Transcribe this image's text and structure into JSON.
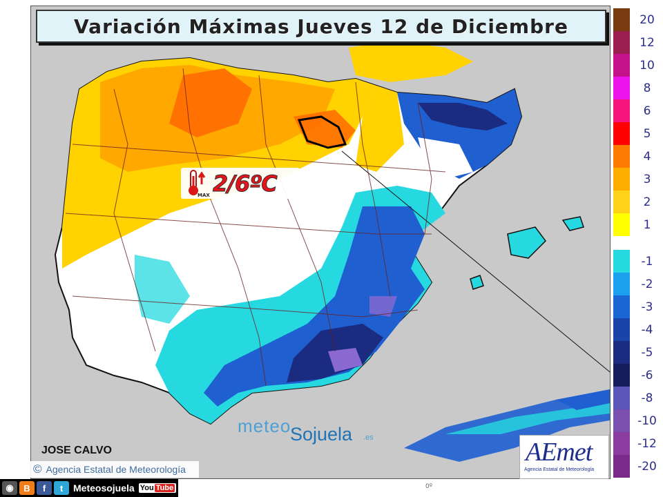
{
  "title": "Variación Máximas Jueves 12 de Diciembre",
  "badge": {
    "value": "2/6ºC",
    "icon_label": "MAX",
    "icon": "thermometer-up-icon"
  },
  "legend": {
    "positive": [
      {
        "label": "20",
        "color": "#7a3b10"
      },
      {
        "label": "12",
        "color": "#9b1f4f"
      },
      {
        "label": "10",
        "color": "#c4138a"
      },
      {
        "label": "8",
        "color": "#ea13ea"
      },
      {
        "label": "6",
        "color": "#f5157d"
      },
      {
        "label": "5",
        "color": "#ff0000"
      },
      {
        "label": "4",
        "color": "#ff7a00"
      },
      {
        "label": "3",
        "color": "#ffae00"
      },
      {
        "label": "2",
        "color": "#ffd21a"
      },
      {
        "label": "1",
        "color": "#ffff00"
      }
    ],
    "negative": [
      {
        "label": "-1",
        "color": "#26d9e0"
      },
      {
        "label": "-2",
        "color": "#1aa0ee"
      },
      {
        "label": "-3",
        "color": "#1a66d4"
      },
      {
        "label": "-4",
        "color": "#1a44a8"
      },
      {
        "label": "-5",
        "color": "#1a2b80"
      },
      {
        "label": "-6",
        "color": "#141c5e"
      },
      {
        "label": "-8",
        "color": "#5a55b8"
      },
      {
        "label": "-10",
        "color": "#7b4fb0"
      },
      {
        "label": "-12",
        "color": "#8c3ea0"
      },
      {
        "label": "-20",
        "color": "#7a2a8a"
      }
    ]
  },
  "colors": {
    "sea": "#c9c9c9",
    "land_neutral": "#ffffff",
    "warm_light": "#ffd200",
    "warm_mid": "#ffa800",
    "warm_strong": "#ff6a00",
    "cold_light": "#26d9e0",
    "cold_mid": "#1f5fd0",
    "cold_strong": "#1a2b80",
    "cold_purple": "#8a6ad0"
  },
  "credits": {
    "author": "JOSE CALVO",
    "agency": "Agencia Estatal de Meteorología",
    "copyright_symbol": "©"
  },
  "brand": {
    "part1": "meteo",
    "part2": "Sojuela",
    "tld": ".es"
  },
  "aemet": {
    "word": "AEmet",
    "subtitle": "Agencia Estatal de Meteorología"
  },
  "social": {
    "icons": [
      "camera-icon",
      "blogger-icon",
      "facebook-icon",
      "twitter-icon"
    ],
    "name": "Meteosojuela",
    "youtube_a": "You",
    "youtube_b": "Tube"
  },
  "meridian": "0º"
}
